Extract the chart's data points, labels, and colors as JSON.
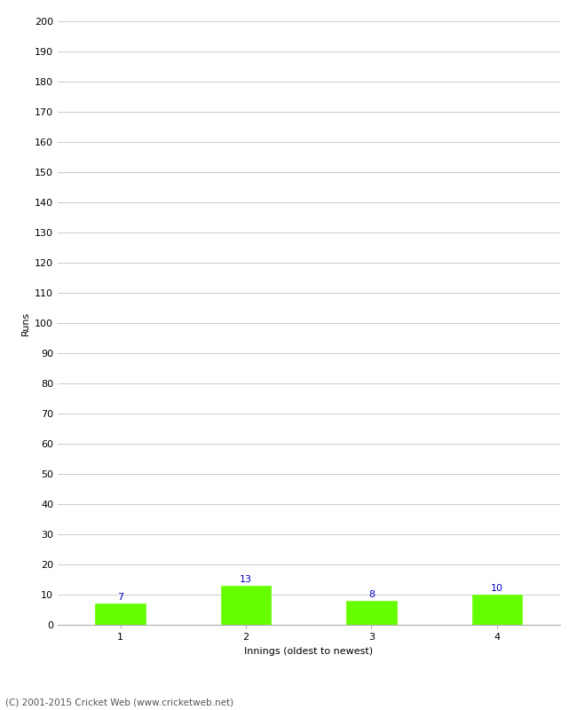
{
  "categories": [
    1,
    2,
    3,
    4
  ],
  "values": [
    7,
    13,
    8,
    10
  ],
  "bar_color": "#66ff00",
  "bar_edge_color": "#66ff00",
  "label_color": "#0000cc",
  "xlabel": "Innings (oldest to newest)",
  "ylabel": "Runs",
  "ylim": [
    0,
    200
  ],
  "yticks": [
    0,
    10,
    20,
    30,
    40,
    50,
    60,
    70,
    80,
    90,
    100,
    110,
    120,
    130,
    140,
    150,
    160,
    170,
    180,
    190,
    200
  ],
  "grid_color": "#cccccc",
  "background_color": "#ffffff",
  "footer": "(C) 2001-2015 Cricket Web (www.cricketweb.net)",
  "footer_color": "#555555",
  "label_fontsize": 8,
  "axis_fontsize": 8,
  "ylabel_fontsize": 8,
  "xlabel_fontsize": 8,
  "bar_width": 0.4
}
